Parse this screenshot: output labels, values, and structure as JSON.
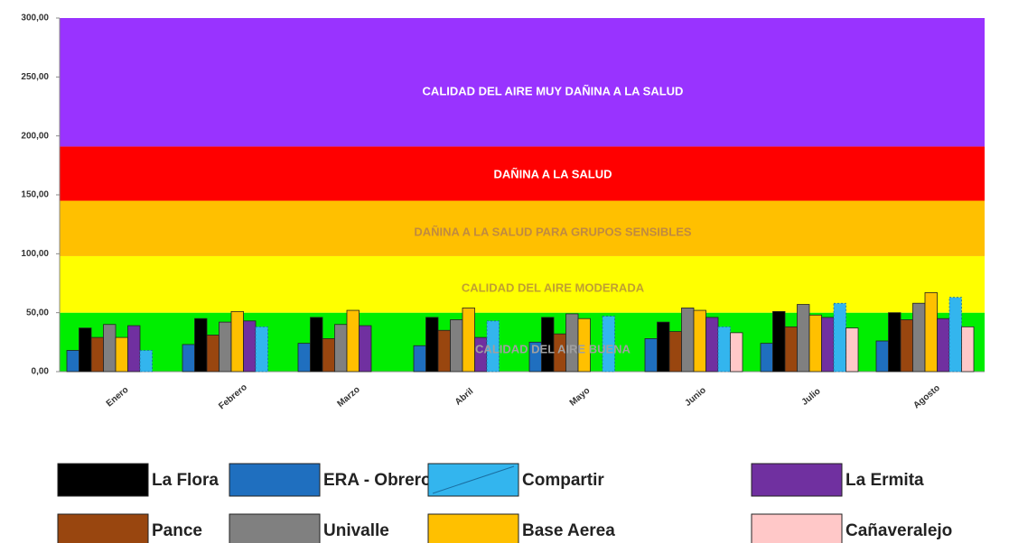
{
  "chart_data": {
    "type": "bar",
    "categories": [
      "Enero",
      "Febrero",
      "Marzo",
      "Abril",
      "Mayo",
      "Junio",
      "Julio",
      "Agosto"
    ],
    "ylim": [
      0,
      300
    ],
    "yticks": [
      {
        "value": 0,
        "label": "0,00"
      },
      {
        "value": 50,
        "label": "50,00"
      },
      {
        "value": 100,
        "label": "100,00"
      },
      {
        "value": 150,
        "label": "150,00"
      },
      {
        "value": 200,
        "label": "200,00"
      },
      {
        "value": 250,
        "label": "250,00"
      },
      {
        "value": 300,
        "label": "300,00"
      }
    ],
    "bands": [
      {
        "label": "CALIDAD DEL AIRE BUENA",
        "from": 0,
        "to": 50,
        "color": "#00ee00",
        "text_color": "#a0a0a0"
      },
      {
        "label": "CALIDAD DEL AIRE MODERADA",
        "from": 50,
        "to": 98,
        "color": "#ffff00",
        "text_color": "#c0a030"
      },
      {
        "label": "DAÑINA A LA SALUD PARA GRUPOS SENSIBLES",
        "from": 98,
        "to": 145,
        "color": "#ffc000",
        "text_color": "#c08a40"
      },
      {
        "label": "DAÑINA A LA SALUD",
        "from": 145,
        "to": 191,
        "color": "#ff0000",
        "text_color": "#ffffff"
      },
      {
        "label": "CALIDAD DEL AIRE MUY DAÑINA A LA SALUD",
        "from": 191,
        "to": 300,
        "color": "#9933ff",
        "text_color": "#ffffff"
      }
    ],
    "series": [
      {
        "name": "La Flora",
        "color": "#000000",
        "values": [
          37,
          45,
          46,
          46,
          46,
          42,
          51,
          50
        ]
      },
      {
        "name": "ERA - Obrero",
        "color": "#1f6fbf",
        "values": [
          18,
          23,
          24,
          22,
          25,
          28,
          24,
          26
        ]
      },
      {
        "name": "Compartir",
        "color": "#33b5ee",
        "values": [
          18,
          38,
          null,
          43,
          47,
          38,
          58,
          63
        ]
      },
      {
        "name": "La Ermita",
        "color": "#7030a0",
        "values": [
          39,
          43,
          39,
          29,
          null,
          46,
          46,
          45
        ]
      },
      {
        "name": "Pance",
        "color": "#99460f",
        "values": [
          29,
          31,
          28,
          35,
          32,
          34,
          38,
          44
        ]
      },
      {
        "name": "Univalle",
        "color": "#808080",
        "values": [
          40,
          42,
          40,
          44,
          49,
          54,
          57,
          58
        ]
      },
      {
        "name": "Base Aerea",
        "color": "#ffc000",
        "values": [
          29,
          51,
          52,
          54,
          45,
          52,
          48,
          67
        ]
      },
      {
        "name": "Cañaveralejo",
        "color": "#ffc8c8",
        "values": [
          null,
          null,
          null,
          null,
          null,
          33,
          37,
          38
        ]
      }
    ]
  }
}
